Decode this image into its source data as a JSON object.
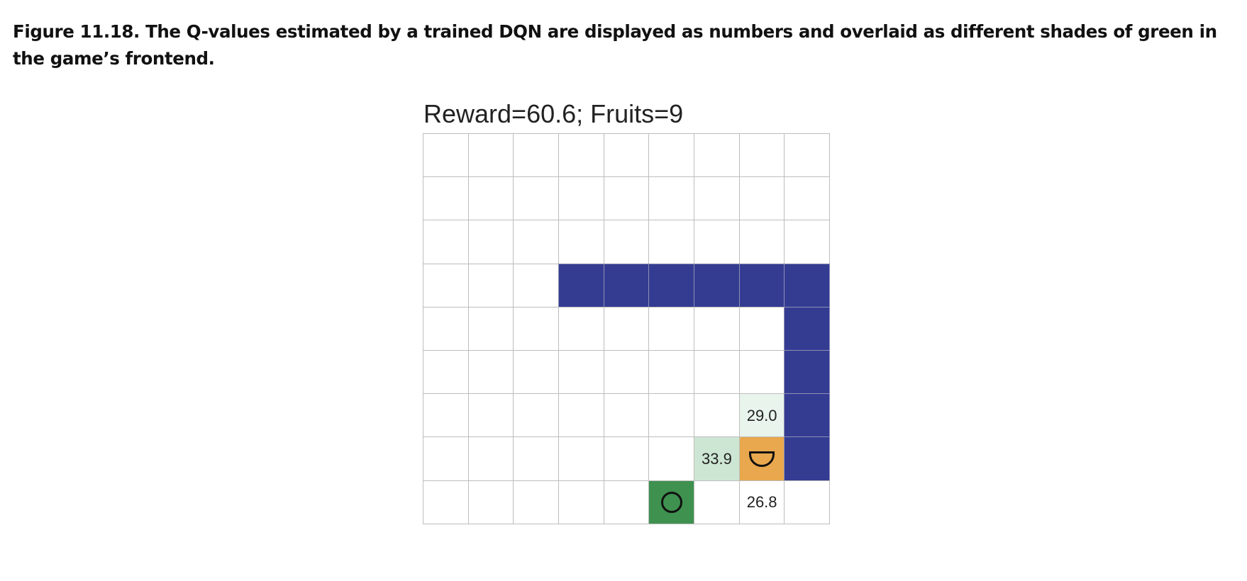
{
  "caption": "Figure 11.18. The Q-values estimated by a trained DQN are displayed as numbers and overlaid as different shades of green in the game’s frontend.",
  "game": {
    "status_text": "Reward=60.6; Fruits=9",
    "reward": 60.6,
    "fruits": 9,
    "board": {
      "rows": 9,
      "cols": 9
    },
    "snake_body": [
      [
        3,
        3
      ],
      [
        3,
        4
      ],
      [
        3,
        5
      ],
      [
        3,
        6
      ],
      [
        3,
        7
      ],
      [
        3,
        8
      ],
      [
        4,
        8
      ],
      [
        5,
        8
      ],
      [
        6,
        8
      ],
      [
        7,
        8
      ]
    ],
    "snake_head": {
      "row": 7,
      "col": 7,
      "icon": "snake-head-icon"
    },
    "fruit": {
      "row": 8,
      "col": 5,
      "icon": "fruit-circle-icon"
    },
    "q_values": [
      {
        "row": 6,
        "col": 7,
        "label": "29.0",
        "value": 29.0,
        "color": "#e9f4ec"
      },
      {
        "row": 7,
        "col": 6,
        "label": "33.9",
        "value": 33.9,
        "color": "#cde6d3"
      },
      {
        "row": 8,
        "col": 7,
        "label": "26.8",
        "value": 26.8,
        "color": "#ffffff"
      }
    ],
    "colors": {
      "snake_body": "#343c92",
      "snake_head": "#e9a84d",
      "fruit": "#3f9150",
      "grid_line": "#bdbdbd",
      "empty": "#ffffff"
    }
  }
}
